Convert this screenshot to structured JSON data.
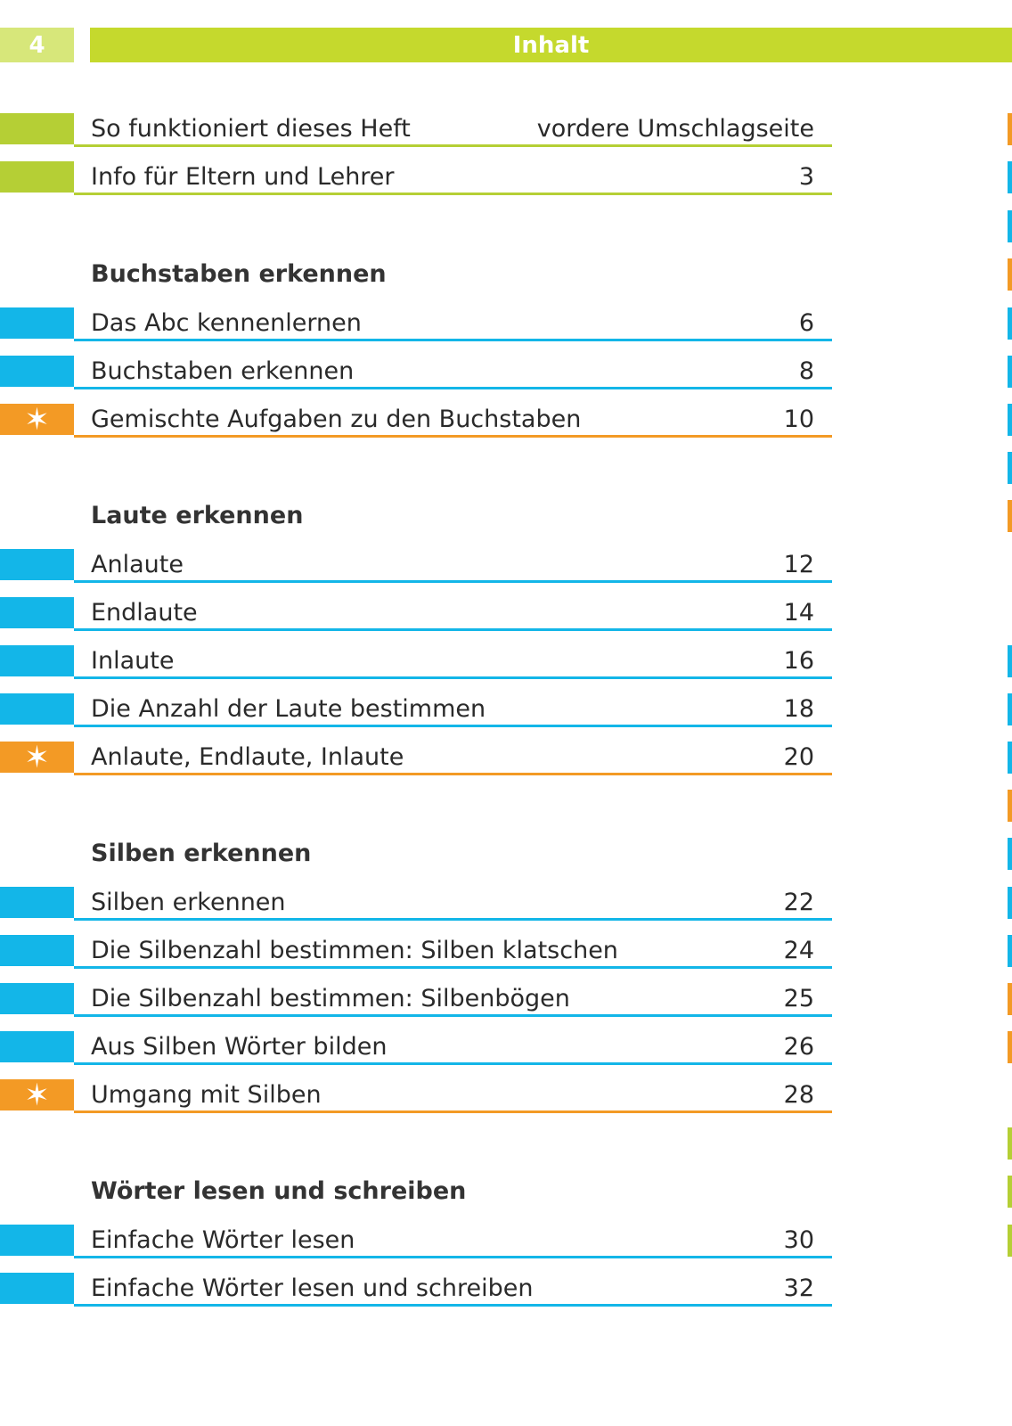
{
  "header": {
    "page_number": "4",
    "title": "Inhalt"
  },
  "colors": {
    "green": "#b5cf35",
    "header_green": "#c5d92d",
    "blue": "#13b6e8",
    "orange": "#f39a25"
  },
  "intro": [
    {
      "title": "So funktioniert dieses Heft",
      "page": "vordere Umschlagseite",
      "color": "green"
    },
    {
      "title": "Info für Eltern und Lehrer",
      "page": "3",
      "color": "green"
    }
  ],
  "sections": [
    {
      "heading": "Buchstaben erkennen",
      "entries": [
        {
          "title": "Das Abc kennenlernen",
          "page": "6",
          "color": "blue",
          "icon": ""
        },
        {
          "title": "Buchstaben erkennen",
          "page": "8",
          "color": "blue",
          "icon": ""
        },
        {
          "title": "Gemischte Aufgaben zu den Buchstaben",
          "page": "10",
          "color": "orange",
          "icon": "star-icon"
        }
      ]
    },
    {
      "heading": "Laute erkennen",
      "entries": [
        {
          "title": "Anlaute",
          "page": "12",
          "color": "blue",
          "icon": ""
        },
        {
          "title": "Endlaute",
          "page": "14",
          "color": "blue",
          "icon": ""
        },
        {
          "title": "Inlaute",
          "page": "16",
          "color": "blue",
          "icon": ""
        },
        {
          "title": "Die Anzahl der Laute bestimmen",
          "page": "18",
          "color": "blue",
          "icon": ""
        },
        {
          "title": "Anlaute, Endlaute, Inlaute",
          "page": "20",
          "color": "orange",
          "icon": "star-icon"
        }
      ]
    },
    {
      "heading": "Silben erkennen",
      "entries": [
        {
          "title": "Silben erkennen",
          "page": "22",
          "color": "blue",
          "icon": ""
        },
        {
          "title": "Die Silbenzahl bestimmen: Silben klatschen",
          "page": "24",
          "color": "blue",
          "icon": ""
        },
        {
          "title": "Die Silbenzahl bestimmen: Silbenbögen",
          "page": "25",
          "color": "blue",
          "icon": ""
        },
        {
          "title": "Aus Silben Wörter bilden",
          "page": "26",
          "color": "blue",
          "icon": ""
        },
        {
          "title": "Umgang mit Silben",
          "page": "28",
          "color": "orange",
          "icon": "star-icon"
        }
      ]
    },
    {
      "heading": "Wörter lesen und schreiben",
      "entries": [
        {
          "title": "Einfache Wörter lesen",
          "page": "30",
          "color": "blue",
          "icon": ""
        },
        {
          "title": "Einfache Wörter lesen und schreiben",
          "page": "32",
          "color": "blue",
          "icon": ""
        }
      ]
    }
  ],
  "edge_markers": [
    "orange",
    "blue",
    "blue",
    "orange",
    "blue",
    "blue",
    "blue",
    "blue",
    "orange",
    "blue",
    "blue",
    "blue",
    "orange",
    "blue",
    "blue",
    "blue",
    "orange",
    "orange",
    "green",
    "green",
    "green"
  ]
}
